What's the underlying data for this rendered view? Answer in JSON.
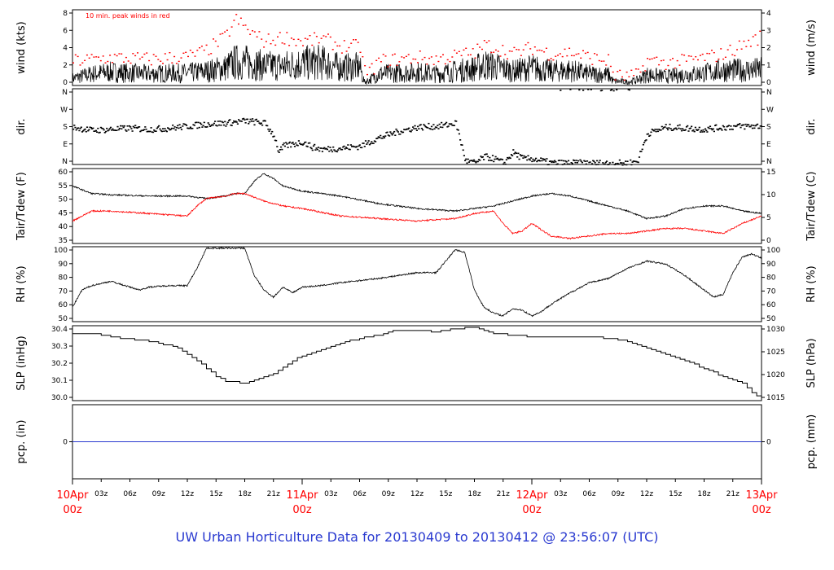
{
  "footer_title": "UW Urban Horticulture Data for 20130409  to  20130412 @ 23:56:07  (UTC)",
  "colors": {
    "accent_red": "#ff0000",
    "blue": "#2a3ad0",
    "black": "#000000"
  },
  "chart_data": {
    "type": "line",
    "x_axis": {
      "hour_range": [
        0,
        72
      ],
      "minor_ticks": [
        {
          "h": 3,
          "label": "03z"
        },
        {
          "h": 6,
          "label": "06z"
        },
        {
          "h": 9,
          "label": "09z"
        },
        {
          "h": 12,
          "label": "12z"
        },
        {
          "h": 15,
          "label": "15z"
        },
        {
          "h": 18,
          "label": "18z"
        },
        {
          "h": 21,
          "label": "21z"
        },
        {
          "h": 27,
          "label": "03z"
        },
        {
          "h": 30,
          "label": "06z"
        },
        {
          "h": 33,
          "label": "09z"
        },
        {
          "h": 36,
          "label": "12z"
        },
        {
          "h": 39,
          "label": "15z"
        },
        {
          "h": 42,
          "label": "18z"
        },
        {
          "h": 45,
          "label": "21z"
        },
        {
          "h": 51,
          "label": "03z"
        },
        {
          "h": 54,
          "label": "06z"
        },
        {
          "h": 57,
          "label": "09z"
        },
        {
          "h": 60,
          "label": "12z"
        },
        {
          "h": 63,
          "label": "15z"
        },
        {
          "h": 66,
          "label": "18z"
        },
        {
          "h": 69,
          "label": "21z"
        }
      ],
      "day_ticks": [
        {
          "h": 0,
          "label": "10Apr",
          "sub": "00z"
        },
        {
          "h": 24,
          "label": "11Apr",
          "sub": "00z"
        },
        {
          "h": 48,
          "label": "12Apr",
          "sub": "00z"
        },
        {
          "h": 72,
          "label": "13Apr",
          "sub": "00z"
        }
      ]
    },
    "panels": [
      {
        "id": "wind",
        "left_label": "wind (kts)",
        "right_label": "wind (m/s)",
        "ylim": [
          0,
          8.5
        ],
        "left_ticks": [
          "0",
          "2",
          "4",
          "6",
          "8"
        ],
        "right_ticks": [
          "0",
          "1",
          "2",
          "3",
          "4"
        ],
        "annotation": "10 min. peak winds in red",
        "series": [
          {
            "style": "noisy",
            "hours": [
              0,
              2,
              4,
              8,
              12,
              14,
              16,
              17,
              18,
              20,
              22,
              24,
              26,
              28,
              30,
              30.5,
              31,
              32,
              34,
              36,
              38,
              40,
              42,
              43,
              44,
              46,
              48,
              50,
              52,
              54,
              56,
              56.5,
              58,
              59,
              60,
              62,
              64,
              66,
              68,
              70,
              72
            ],
            "values": [
              0.8,
              1.3,
              1.5,
              1.3,
              1.4,
              1.6,
              2.0,
              2.6,
              2.6,
              2.2,
              2.2,
              2.5,
              2.6,
              2.0,
              2.1,
              0.4,
              0.6,
              1.3,
              1.4,
              1.5,
              1.3,
              1.6,
              1.9,
              2.3,
              2.2,
              1.6,
              2.0,
              1.6,
              1.7,
              1.3,
              1.2,
              0.5,
              0.4,
              0.6,
              1.2,
              1.0,
              1.2,
              1.4,
              1.7,
              1.7,
              1.8
            ]
          },
          {
            "style": "peaks",
            "hours": [
              0,
              2,
              4,
              8,
              12,
              14,
              16,
              17,
              18,
              20,
              22,
              24,
              26,
              28,
              30,
              30.5,
              31,
              32,
              34,
              36,
              38,
              40,
              42,
              43,
              44,
              46,
              48,
              50,
              52,
              54,
              56,
              56.5,
              58,
              59,
              60,
              62,
              64,
              66,
              68,
              70,
              72
            ],
            "values": [
              2.8,
              3.0,
              3.2,
              3.0,
              3.3,
              4.0,
              5.6,
              7.5,
              6.5,
              5.0,
              5.5,
              5.0,
              5.3,
              4.5,
              4.4,
              1.6,
              1.6,
              2.8,
              3.0,
              3.2,
              3.0,
              3.4,
              3.8,
              4.6,
              4.4,
              3.6,
              4.3,
              3.6,
              3.8,
              3.2,
              2.8,
              1.2,
              1.0,
              1.2,
              2.9,
              2.6,
              2.8,
              3.2,
              3.6,
              4.6,
              5.6
            ]
          }
        ]
      },
      {
        "id": "dir",
        "left_label": "dir.",
        "right_label": "dir.",
        "ylim": [
          0,
          360
        ],
        "left_ticks": [
          "N",
          "E",
          "S",
          "W",
          "N"
        ],
        "right_ticks": [
          "N",
          "E",
          "S",
          "W",
          "N"
        ],
        "series": [
          {
            "style": "dots",
            "hours": [
              0,
              2,
              4,
              6,
              8,
              10,
              12,
              14,
              16,
              18,
              20,
              21,
              21.5,
              22,
              23,
              24,
              25,
              26,
              28,
              30,
              32,
              34,
              36,
              38,
              39,
              40,
              41,
              42,
              43,
              44,
              45,
              46,
              47,
              48,
              50,
              52,
              54,
              56,
              58,
              59,
              60,
              62,
              64,
              66,
              68,
              70,
              72
            ],
            "values": [
              180,
              165,
              170,
              175,
              170,
              175,
              185,
              195,
              200,
              210,
              200,
              140,
              60,
              90,
              100,
              110,
              85,
              75,
              80,
              90,
              130,
              160,
              180,
              185,
              190,
              200,
              20,
              10,
              40,
              30,
              10,
              60,
              30,
              30,
              10,
              10,
              10,
              8,
              10,
              20,
              150,
              180,
              175,
              170,
              180,
              185,
              185
            ]
          }
        ]
      },
      {
        "id": "temp",
        "left_label": "Tair/Tdew (F)",
        "right_label": "Tair/Tdew (C)",
        "ylim": [
          32,
          62
        ],
        "left_ticks": [
          "35",
          "40",
          "45",
          "50",
          "55",
          "60"
        ],
        "right_ticks": [
          "0",
          "5",
          "10",
          "15"
        ],
        "series": [
          {
            "name": "Tair",
            "style": "line",
            "color": "#000000",
            "hours": [
              0,
              2,
              4,
              8,
              12,
              14,
              16,
              17,
              18,
              19,
              20,
              21,
              22,
              24,
              28,
              32,
              36,
              40,
              44,
              48,
              50,
              52,
              54,
              56,
              58,
              60,
              62,
              64,
              66,
              68,
              70,
              72
            ],
            "values": [
              55,
              52,
              51.5,
              51,
              51,
              50,
              51,
              52,
              52,
              57,
              60,
              58,
              55,
              53,
              51,
              48,
              46,
              45,
              47,
              51,
              52,
              51,
              49,
              47,
              45,
              42,
              43,
              46,
              47,
              47,
              45,
              44
            ]
          },
          {
            "name": "Tdew",
            "style": "line",
            "color": "#ff0000",
            "hours": [
              0,
              2,
              4,
              8,
              12,
              13,
              14,
              16,
              17,
              18,
              20,
              22,
              24,
              28,
              32,
              36,
              40,
              42,
              44,
              45,
              46,
              47,
              48,
              50,
              52,
              54,
              56,
              58,
              60,
              62,
              64,
              66,
              68,
              70,
              72
            ],
            "values": [
              41,
              45,
              45,
              44,
              43,
              47,
              50,
              51,
              52,
              52,
              49,
              47,
              46,
              43,
              42,
              41,
              42,
              44,
              45,
              40,
              36,
              37,
              40,
              35,
              34,
              35,
              36,
              36,
              37,
              38,
              38,
              37,
              36,
              40,
              43
            ]
          }
        ]
      },
      {
        "id": "rh",
        "left_label": "RH (%)",
        "right_label": "RH (%)",
        "ylim": [
          48,
          100
        ],
        "left_ticks": [
          "50",
          "60",
          "70",
          "80",
          "90",
          "100"
        ],
        "right_ticks": [
          "50",
          "60",
          "70",
          "80",
          "90",
          "100"
        ],
        "series": [
          {
            "style": "line",
            "color": "#000000",
            "hours": [
              0,
              1,
              2,
              4,
              6,
              7,
              8,
              10,
              12,
              13,
              14,
              16,
              18,
              19,
              20,
              21,
              22,
              23,
              24,
              26,
              28,
              32,
              36,
              38,
              39,
              40,
              41,
              42,
              43,
              44,
              45,
              46,
              47,
              48,
              49,
              50,
              52,
              54,
              56,
              58,
              60,
              62,
              64,
              66,
              67,
              68,
              69,
              70,
              71,
              72
            ],
            "values": [
              58,
              70,
              73,
              76,
              72,
              70,
              72,
              73,
              73,
              85,
              99,
              99,
              99,
              80,
              70,
              65,
              72,
              68,
              72,
              73,
              75,
              78,
              82,
              82,
              90,
              98,
              96,
              70,
              58,
              54,
              52,
              57,
              56,
              52,
              55,
              60,
              68,
              75,
              78,
              85,
              90,
              88,
              80,
              70,
              65,
              67,
              82,
              93,
              95,
              92
            ]
          }
        ]
      },
      {
        "id": "slp",
        "left_label": "SLP (inHg)",
        "right_label": "SLP (hPa)",
        "ylim": [
          29.97,
          30.44
        ],
        "left_ticks": [
          "30.0",
          "30.1",
          "30.2",
          "30.3",
          "30.4"
        ],
        "right_ticks": [
          "1015",
          "1020",
          "1025",
          "1030"
        ],
        "series": [
          {
            "style": "step",
            "color": "#000000",
            "hours": [
              0,
              2,
              5,
              7,
              9,
              11,
              12,
              13,
              14,
              15,
              16,
              18,
              19,
              20,
              21,
              22,
              23,
              24,
              26,
              28,
              30,
              32,
              33,
              34,
              36,
              38,
              40,
              42,
              44,
              46,
              48,
              50,
              52,
              54,
              56,
              58,
              60,
              62,
              64,
              66,
              68,
              70,
              71,
              72
            ],
            "values": [
              30.39,
              30.39,
              30.36,
              30.35,
              30.33,
              30.3,
              30.26,
              30.22,
              30.17,
              30.12,
              30.09,
              30.08,
              30.1,
              30.12,
              30.14,
              30.18,
              30.22,
              30.25,
              30.29,
              30.33,
              30.36,
              30.38,
              30.4,
              30.41,
              30.41,
              30.4,
              30.42,
              30.43,
              30.39,
              30.38,
              30.37,
              30.37,
              30.37,
              30.37,
              30.36,
              30.34,
              30.3,
              30.26,
              30.22,
              30.17,
              30.12,
              30.08,
              30.02,
              29.98
            ]
          }
        ]
      },
      {
        "id": "pcp",
        "left_label": "pcp. (in)",
        "right_label": "pcp. (mm)",
        "ylim": [
          -1,
          1
        ],
        "left_ticks": [
          "0"
        ],
        "right_ticks": [
          "0"
        ],
        "series": [
          {
            "style": "flat",
            "color": "#2a3ad0",
            "hours": [
              0,
              72
            ],
            "values": [
              0,
              0
            ]
          }
        ]
      }
    ]
  }
}
